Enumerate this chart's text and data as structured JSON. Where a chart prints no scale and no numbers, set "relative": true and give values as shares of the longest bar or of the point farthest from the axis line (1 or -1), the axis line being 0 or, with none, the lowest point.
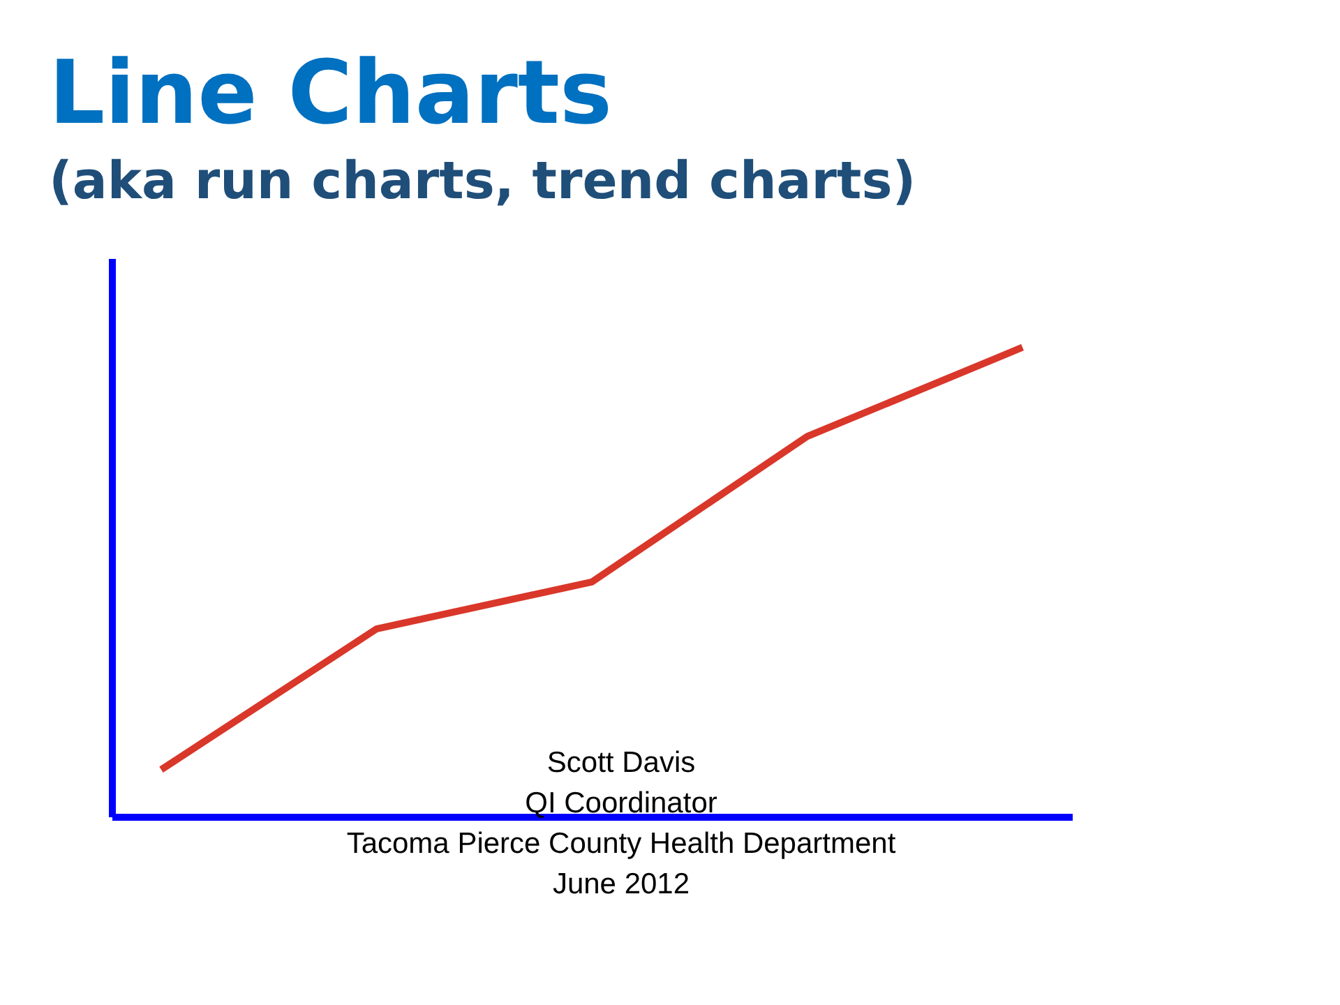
{
  "chart_data": {
    "type": "line",
    "title": "Line Charts",
    "subtitle": "(aka run charts, trend charts)",
    "categories": [
      null,
      null,
      null,
      null,
      null
    ],
    "values": [
      0.1,
      0.4,
      0.5,
      0.81,
      1
    ],
    "color": "#d9372a",
    "relative": true,
    "annotations": [
      "Scott Davis",
      "QI Coordinator",
      "Tacoma Pierce County Health Department",
      "June 2012"
    ]
  }
}
